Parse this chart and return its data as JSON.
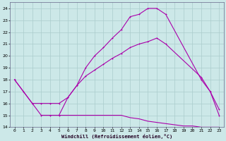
{
  "xlabel": "Windchill (Refroidissement éolien,°C)",
  "bg_color": "#cce8e8",
  "grid_color": "#aacccc",
  "line_color": "#aa00aa",
  "xlim": [
    -0.5,
    23.5
  ],
  "ylim": [
    14,
    24.5
  ],
  "xticks": [
    0,
    1,
    2,
    3,
    4,
    5,
    6,
    7,
    8,
    9,
    10,
    11,
    12,
    13,
    14,
    15,
    16,
    17,
    18,
    19,
    20,
    21,
    22,
    23
  ],
  "yticks": [
    14,
    15,
    16,
    17,
    18,
    19,
    20,
    21,
    22,
    23,
    24
  ],
  "xticklabels": [
    "0",
    "1",
    "2",
    "3",
    "4",
    "5",
    "6",
    "7",
    "8",
    "9",
    "10",
    "11",
    "12",
    "13",
    "14",
    "15",
    "16",
    "17",
    "18",
    "19",
    "20",
    "21",
    "22",
    "23"
  ],
  "yticklabels": [
    "14",
    "15",
    "16",
    "17",
    "18",
    "19",
    "20",
    "21",
    "22",
    "23",
    "24"
  ],
  "curve1_x": [
    0,
    1,
    2,
    3,
    4,
    5,
    6,
    7,
    8,
    9,
    10,
    11,
    12,
    13,
    14,
    15,
    16,
    17,
    21,
    22,
    23
  ],
  "curve1_y": [
    18,
    17,
    16,
    15,
    15,
    15,
    16.5,
    17.5,
    19,
    20,
    20.7,
    21.5,
    22.2,
    23.3,
    23.5,
    24,
    24,
    23.5,
    18,
    17,
    15
  ],
  "curve2_x": [
    0,
    2,
    3,
    4,
    5,
    6,
    7,
    8,
    9,
    10,
    11,
    12,
    13,
    14,
    15,
    16,
    17,
    21,
    22,
    23
  ],
  "curve2_y": [
    18,
    16,
    16,
    16,
    16,
    16.5,
    17.5,
    18.3,
    18.8,
    19.3,
    19.8,
    20.2,
    20.7,
    21.0,
    21.2,
    21.5,
    21.0,
    18.2,
    17.0,
    15.5
  ],
  "curve3_x": [
    3,
    4,
    5,
    6,
    7,
    8,
    9,
    10,
    11,
    12,
    13,
    14,
    15,
    16,
    17,
    18,
    19,
    20,
    21,
    22,
    23
  ],
  "curve3_y": [
    15,
    15,
    15,
    15,
    15,
    15,
    15,
    15,
    15,
    15,
    14.8,
    14.7,
    14.5,
    14.4,
    14.3,
    14.2,
    14.1,
    14.1,
    14.0,
    14.0,
    14.0
  ]
}
